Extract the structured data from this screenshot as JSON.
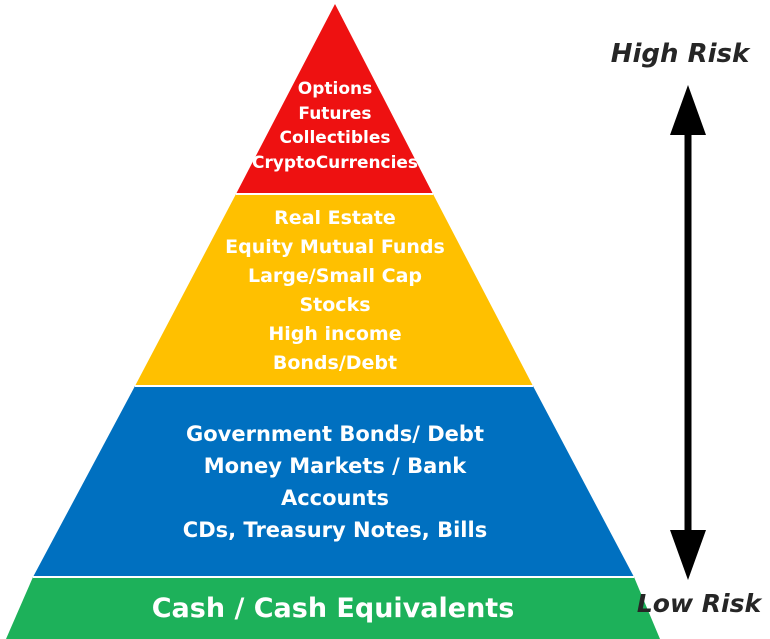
{
  "diagram": {
    "tiers": [
      {
        "id": "top",
        "color": "#EE1111",
        "lines": [
          "Options",
          "Futures",
          "Collectibles",
          "CryptoCurrencies"
        ]
      },
      {
        "id": "upper-middle",
        "color": "#FFC000",
        "lines": [
          "Real Estate",
          "Equity Mutual Funds",
          "Large/Small Cap",
          "Stocks",
          "High income",
          "Bonds/Debt"
        ]
      },
      {
        "id": "lower-middle",
        "color": "#0070C0",
        "lines": [
          "Government Bonds/ Debt",
          "Money Markets / Bank",
          "Accounts",
          "CDs, Treasury Notes, Bills"
        ]
      },
      {
        "id": "base",
        "color": "#1DB15A",
        "lines": [
          "Cash / Cash Equivalents"
        ]
      }
    ],
    "risk_scale": {
      "high_label": "High Risk",
      "low_label": "Low Risk",
      "arrow_color": "#000000"
    }
  }
}
